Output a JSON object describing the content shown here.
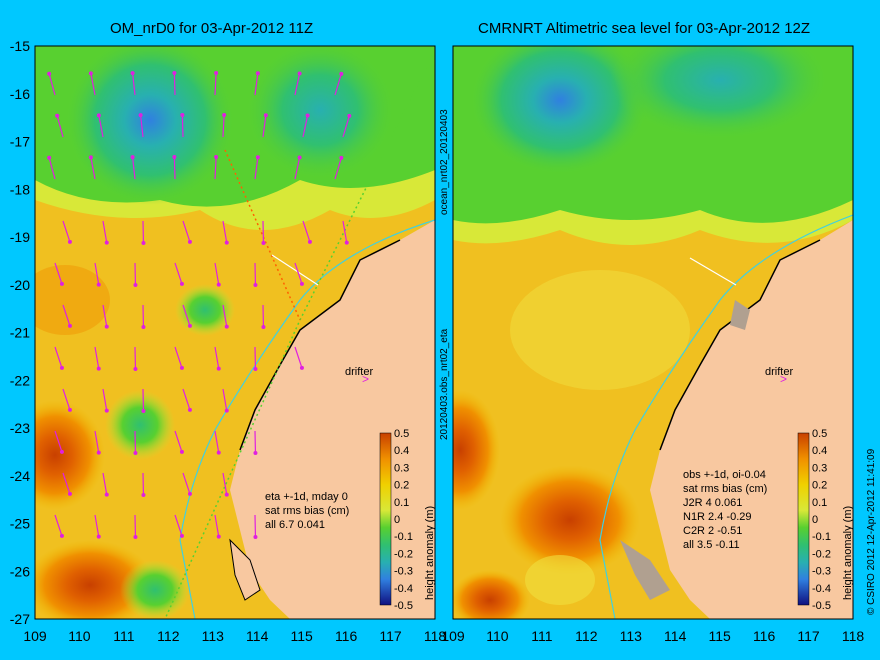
{
  "left_panel": {
    "title": "OM_nrD0 for 03-Apr-2012 11Z",
    "stats_lines": [
      "eta +-1d, mday 0",
      "sat rms bias (cm)",
      "all 6.7 0.041"
    ],
    "drifter_label": "drifter"
  },
  "right_panel": {
    "title": "CMRNRT Altimetric sea level  for 03-Apr-2012 12Z",
    "stats_lines": [
      "obs +-1d, oi-0.04",
      "sat rms bias (cm)",
      "J2R   4  0.061",
      "N1R   2.4  -0.29",
      "C2R   2  -0.51",
      "all  3.5  -0.11"
    ],
    "drifter_label": "drifter"
  },
  "side_labels": {
    "top": "ocean_nrt02_20120403",
    "bottom": "20120403.obs_nrt02_eta",
    "credit": "© CSIRO 2012  12-Apr-2012 11:41:09"
  },
  "axes": {
    "x_ticks": [
      "109",
      "110",
      "111",
      "112",
      "113",
      "114",
      "115",
      "116",
      "117",
      "118"
    ],
    "y_ticks": [
      "-15",
      "-16",
      "-17",
      "-18",
      "-19",
      "-20",
      "-21",
      "-22",
      "-23",
      "-24",
      "-25",
      "-26",
      "-27"
    ],
    "x_range": [
      109,
      118
    ],
    "y_range": [
      -27,
      -15
    ]
  },
  "colorbar": {
    "label": "height anomaly (m)",
    "ticks": [
      "0.5",
      "0.4",
      "0.3",
      "0.2",
      "0.1",
      "0",
      "-0.1",
      "-0.2",
      "-0.3",
      "-0.4",
      "-0.5"
    ],
    "colors": [
      "#c84000",
      "#e06000",
      "#f09000",
      "#f0b800",
      "#f0e040",
      "#b8e838",
      "#58d030",
      "#30c070",
      "#28b0b0",
      "#3080e0",
      "#2040c0",
      "#101080"
    ]
  },
  "colors": {
    "background": "#00c8ff",
    "land": "#f8c8a0",
    "vector": "#e020e0",
    "track": "#ff6000",
    "coastline_light": "#40d0e0"
  }
}
